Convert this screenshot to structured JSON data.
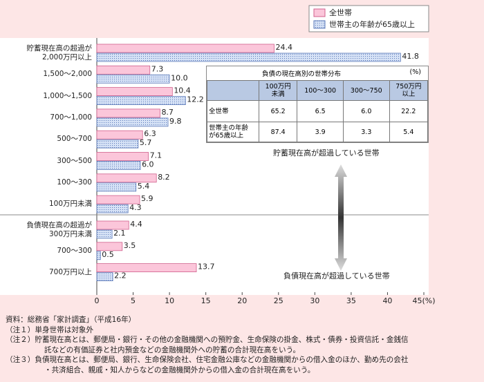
{
  "chart_data": {
    "type": "hbar",
    "categories": [
      "貯蓄現在高の超過が\n2,000万円以上",
      "1,500～2,000",
      "1,000～1,500",
      "700～1,000",
      "500～700",
      "300～500",
      "100～300",
      "100万円未満",
      "負債現在高の超過が\n300万円未満",
      "700～300",
      "700万円以上"
    ],
    "series": [
      {
        "name": "全世帯",
        "color": "#fbc6da",
        "values": [
          24.4,
          7.3,
          10.4,
          8.7,
          6.3,
          7.1,
          8.2,
          5.9,
          4.4,
          3.5,
          13.7
        ],
        "value_labels": [
          "24.4",
          "7.3",
          "10.4",
          "8.7",
          "6.3",
          "7.1",
          "8.2",
          "5.9",
          "4.4",
          "3.5",
          "13.7"
        ]
      },
      {
        "name": "世帯主の年齢が65歳以上",
        "color": "#d6e2f6",
        "values": [
          41.8,
          10.0,
          12.2,
          9.8,
          5.7,
          6.0,
          5.4,
          4.3,
          2.1,
          0.5,
          2.2
        ],
        "value_labels": [
          "41.8",
          "10.0",
          "12.2",
          "9.8",
          "5.7",
          "6.0",
          "5.4",
          "4.3",
          "2.1",
          "0.5",
          "2.2"
        ]
      }
    ],
    "xlim": [
      0,
      45
    ],
    "xticks": [
      0,
      5,
      10,
      15,
      20,
      25,
      30,
      35,
      40,
      {
        "value": 45,
        "label": "45(%)"
      }
    ],
    "annotations": [
      "貯蓄現在高が超過している世帯",
      "負債現在高が超過している世帯"
    ]
  },
  "table": {
    "title": "負債の現在高別の世帯分布",
    "unit": "(%)",
    "header": [
      "100万円\n未満",
      "100～300",
      "300～750",
      "750万円\n以上"
    ],
    "rows": [
      [
        "全世帯",
        "65.2",
        "6.5",
        "6.0",
        "22.2"
      ],
      [
        "世帯主の年齢\nが65歳以上",
        "87.4",
        "3.9",
        "3.3",
        "5.4"
      ]
    ]
  },
  "notes": [
    "資料：総務省「家計調査」（平成16年）",
    "（注１）単身世帯は対象外",
    "（注２）貯蓄現在高とは、郵便局・銀行・その他の金融機関への預貯金、生命保険の掛金、株式・債券・投資信託・金銭信",
    "託などの有価証券と社内預金などの金融機関外への貯蓄の合計現在高をいう。",
    "（注３）負債現在高とは、郵便局、銀行、生命保険会社、住宅金融公庫などの金融機関からの借入金のほか、勤め先の会社",
    "・共済組合、親戚・知人からなどの金融機関外からの借入金の合計現在高をいう。"
  ]
}
